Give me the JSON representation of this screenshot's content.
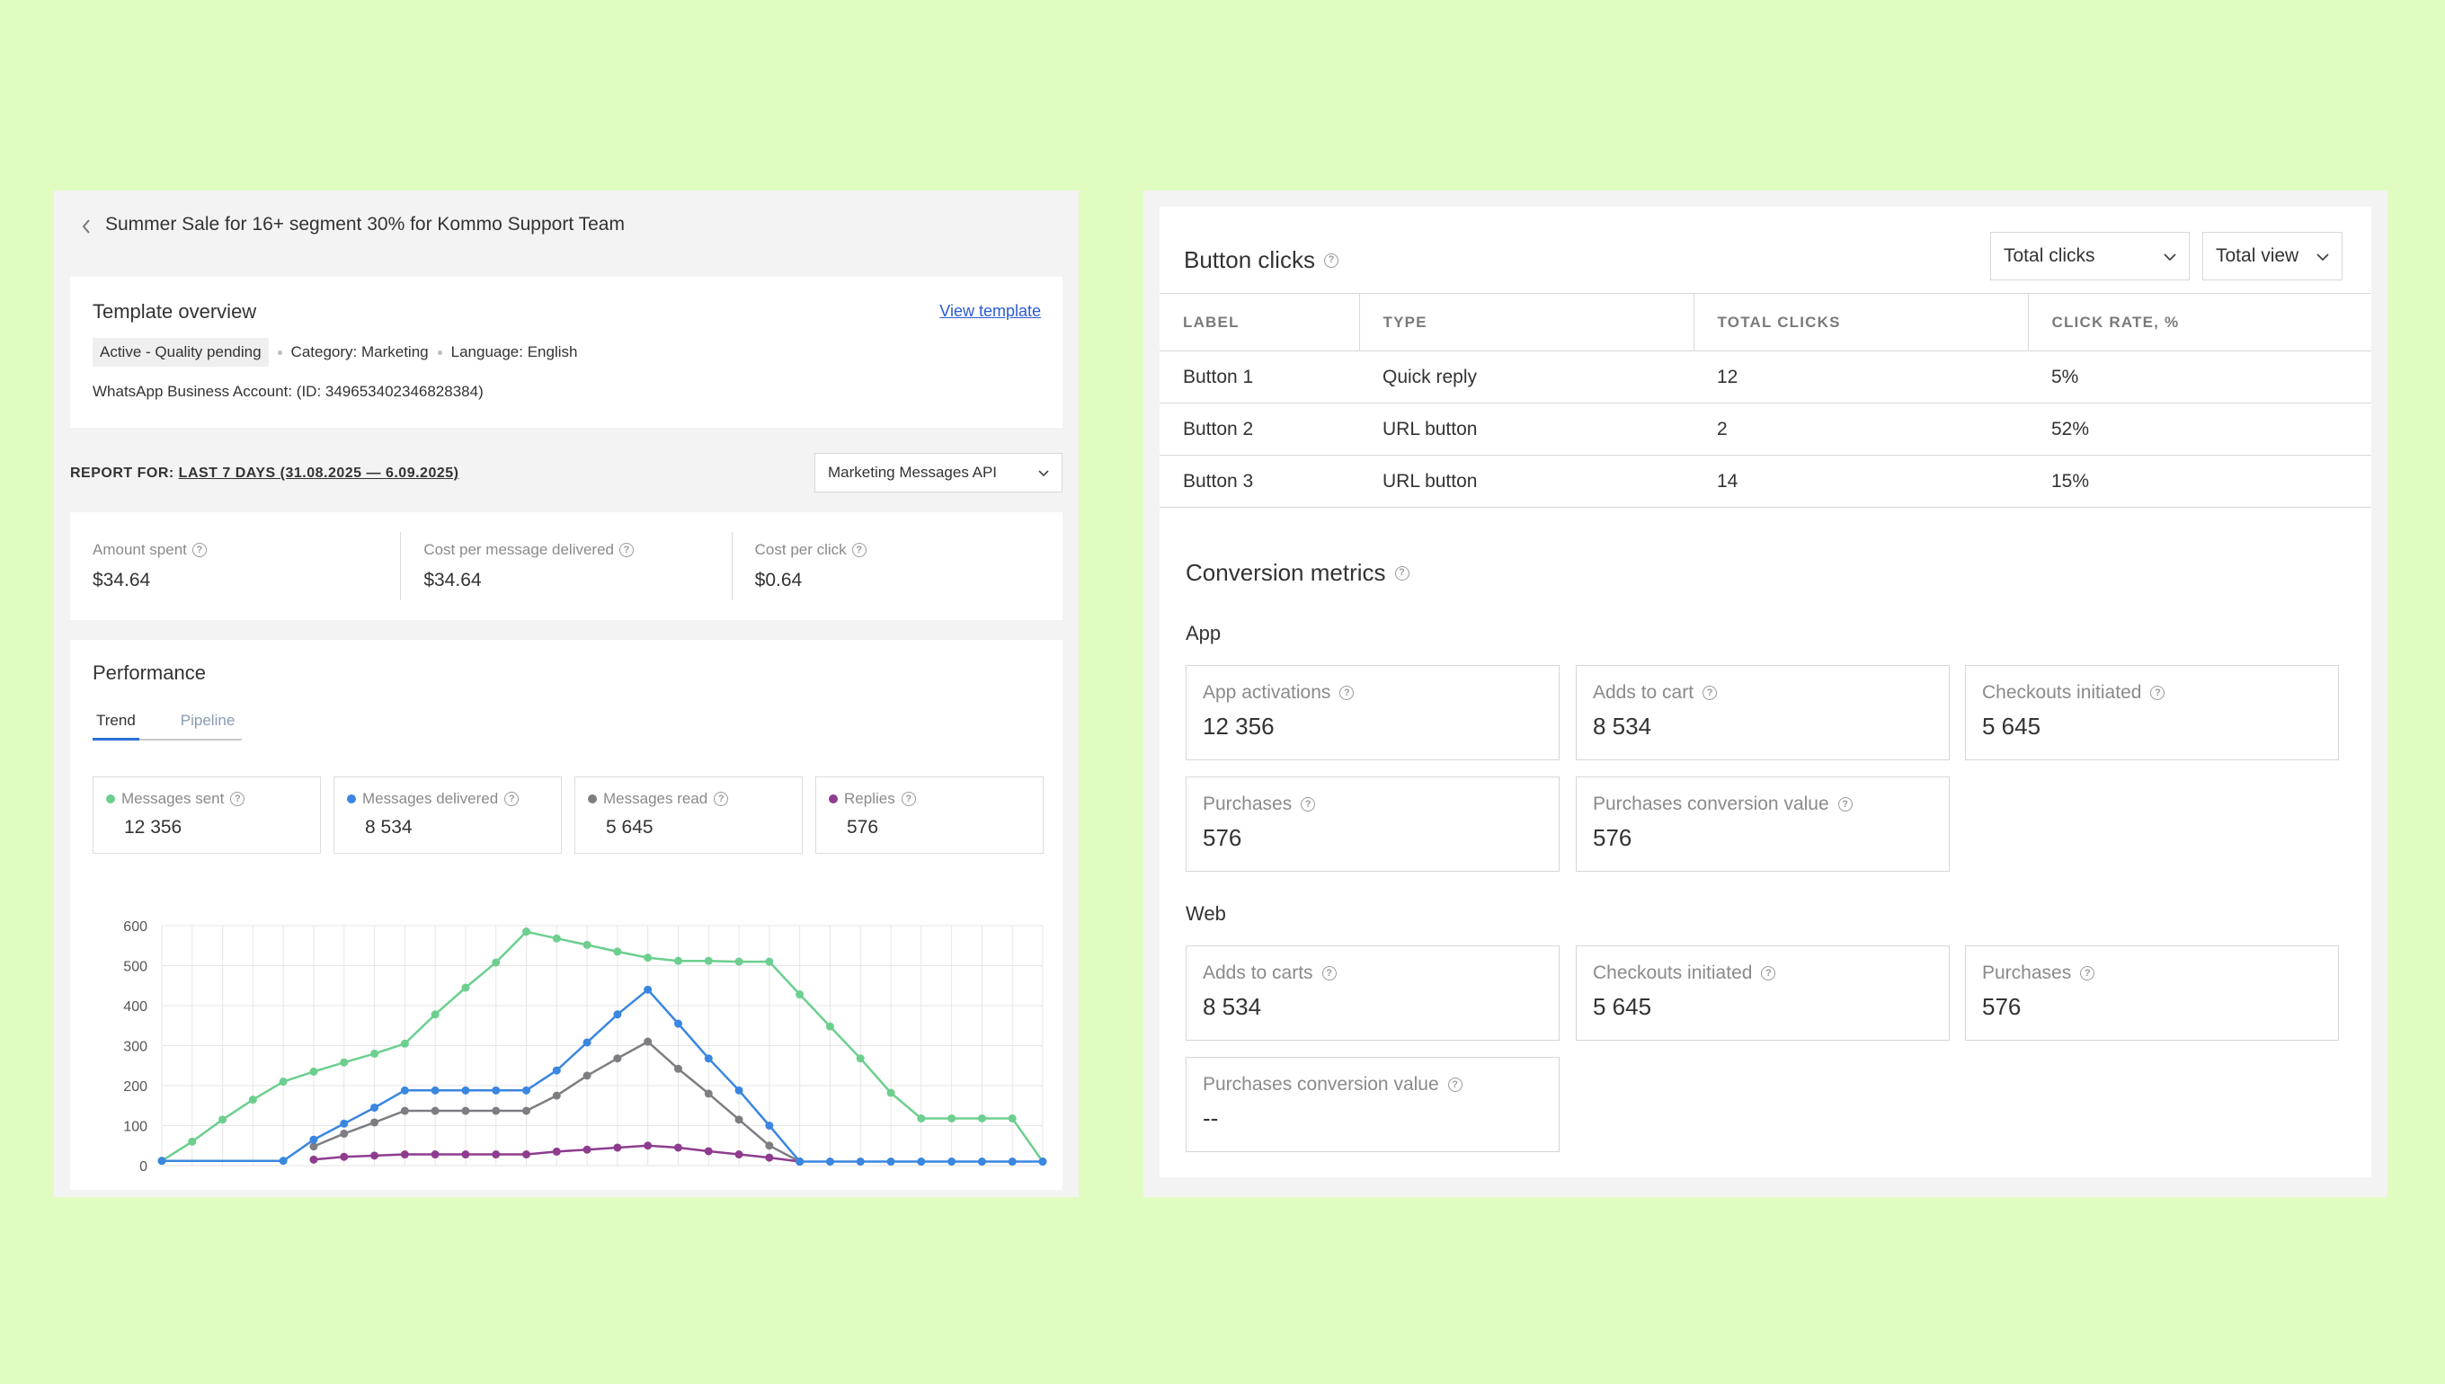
{
  "left": {
    "title": "Summer Sale for 16+ segment 30% for Kommo Support Team",
    "template_overview": {
      "title": "Template overview",
      "view_link": "View template",
      "status": "Active - Quality pending",
      "category": "Category: Marketing",
      "language": "Language: English",
      "account": "WhatsApp Business Account: (ID: 349653402346828384)"
    },
    "report": {
      "label": "REPORT FOR:",
      "range": "LAST 7 DAYS (31.08.2025 — 6.09.2025)",
      "api_select": "Marketing Messages API"
    },
    "costs": [
      {
        "label": "Amount spent",
        "value": "$34.64"
      },
      {
        "label": "Cost per message delivered",
        "value": "$34.64"
      },
      {
        "label": "Cost per click",
        "value": "$0.64"
      }
    ],
    "performance": {
      "title": "Performance",
      "tabs": [
        "Trend",
        "Pipeline"
      ],
      "active_tab": "Trend",
      "metrics": [
        {
          "label": "Messages sent",
          "value": "12 356",
          "color": "#6ccf8e"
        },
        {
          "label": "Messages delivered",
          "value": "8 534",
          "color": "#3a86e0"
        },
        {
          "label": "Messages read",
          "value": "5 645",
          "color": "#7d7d82"
        },
        {
          "label": "Replies",
          "value": "576",
          "color": "#8e3c8e"
        }
      ]
    }
  },
  "chart_data": {
    "type": "line",
    "y_ticks": [
      "0",
      "100",
      "200",
      "300",
      "400",
      "500",
      "600"
    ],
    "ylim": [
      0,
      600
    ],
    "x": [
      0,
      1,
      2,
      3,
      4,
      5,
      6,
      7,
      8,
      9,
      10,
      11,
      12,
      13,
      14,
      15,
      16,
      17,
      18,
      19,
      20,
      21,
      22,
      23,
      24,
      25,
      26,
      27,
      28,
      29
    ],
    "grid": true,
    "series": [
      {
        "name": "Messages sent",
        "color": "#6ccf8e",
        "values": [
          12,
          60,
          115,
          165,
          210,
          235,
          258,
          280,
          305,
          378,
          445,
          508,
          585,
          568,
          552,
          535,
          520,
          512,
          512,
          510,
          510,
          428,
          348,
          268,
          182,
          118,
          118,
          118,
          118,
          10
        ]
      },
      {
        "name": "Messages delivered",
        "color": "#3a86e0",
        "values": [
          null,
          null,
          null,
          null,
          null,
          null,
          null,
          null,
          null,
          null,
          null,
          null,
          null,
          null,
          null,
          null,
          null,
          null,
          null,
          null,
          null,
          null,
          null,
          null,
          null,
          null,
          null,
          null,
          null,
          null
        ],
        "points": [
          [
            0,
            12
          ],
          [
            4,
            12
          ],
          [
            5,
            65
          ],
          [
            6,
            105
          ],
          [
            7,
            145
          ],
          [
            8,
            188
          ],
          [
            9,
            188
          ],
          [
            10,
            188
          ],
          [
            11,
            188
          ],
          [
            12,
            188
          ],
          [
            13,
            238
          ],
          [
            14,
            308
          ],
          [
            15,
            378
          ],
          [
            16,
            440
          ],
          [
            17,
            355
          ],
          [
            18,
            268
          ],
          [
            19,
            188
          ],
          [
            20,
            100
          ],
          [
            21,
            10
          ],
          [
            22,
            10
          ],
          [
            23,
            10
          ],
          [
            24,
            10
          ],
          [
            25,
            10
          ],
          [
            26,
            10
          ],
          [
            27,
            10
          ],
          [
            28,
            10
          ],
          [
            29,
            10
          ]
        ]
      },
      {
        "name": "Messages read",
        "color": "#7d7d82",
        "points": [
          [
            5,
            48
          ],
          [
            6,
            80
          ],
          [
            7,
            108
          ],
          [
            8,
            137
          ],
          [
            9,
            137
          ],
          [
            10,
            137
          ],
          [
            11,
            137
          ],
          [
            12,
            137
          ],
          [
            13,
            175
          ],
          [
            14,
            225
          ],
          [
            15,
            268
          ],
          [
            16,
            310
          ],
          [
            17,
            242
          ],
          [
            18,
            180
          ],
          [
            19,
            115
          ],
          [
            20,
            50
          ],
          [
            21,
            10
          ]
        ]
      },
      {
        "name": "Replies",
        "color": "#8e3c8e",
        "points": [
          [
            5,
            15
          ],
          [
            6,
            22
          ],
          [
            7,
            25
          ],
          [
            8,
            28
          ],
          [
            9,
            28
          ],
          [
            10,
            28
          ],
          [
            11,
            28
          ],
          [
            12,
            28
          ],
          [
            13,
            35
          ],
          [
            14,
            40
          ],
          [
            15,
            45
          ],
          [
            16,
            50
          ],
          [
            17,
            45
          ],
          [
            18,
            36
          ],
          [
            19,
            28
          ],
          [
            20,
            20
          ],
          [
            21,
            10
          ]
        ]
      }
    ]
  },
  "right": {
    "button_clicks": {
      "title": "Button clicks",
      "select_clicks": "Total clicks",
      "select_view": "Total view",
      "columns": [
        "LABEL",
        "TYPE",
        "TOTAL CLICKS",
        "CLICK RATE, %"
      ],
      "rows": [
        [
          "Button 1",
          "Quick reply",
          "12",
          "5%"
        ],
        [
          "Button 2",
          "URL button",
          "2",
          "52%"
        ],
        [
          "Button 3",
          "URL button",
          "14",
          "15%"
        ]
      ]
    },
    "conversion": {
      "title": "Conversion metrics",
      "app_title": "App",
      "app": [
        {
          "label": "App activations",
          "value": "12 356"
        },
        {
          "label": "Adds to cart",
          "value": "8 534"
        },
        {
          "label": "Checkouts initiated",
          "value": "5 645"
        },
        {
          "label": "Purchases",
          "value": "576"
        },
        {
          "label": "Purchases conversion value",
          "value": "576"
        }
      ],
      "web_title": "Web",
      "web": [
        {
          "label": "Adds to carts",
          "value": "8 534"
        },
        {
          "label": "Checkouts initiated",
          "value": "5 645"
        },
        {
          "label": "Purchases",
          "value": "576"
        },
        {
          "label": "Purchases conversion value",
          "value": "--"
        }
      ]
    }
  }
}
